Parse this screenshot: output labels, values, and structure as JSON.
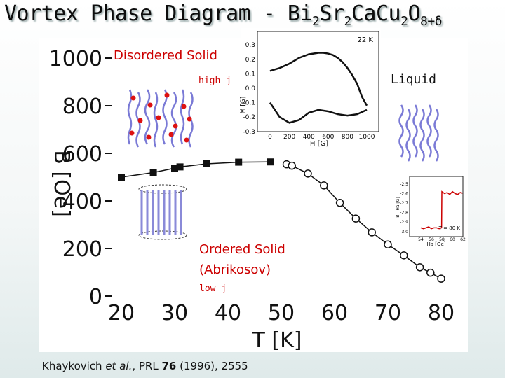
{
  "title": {
    "prefix": "Vortex Phase Diagram - Bi",
    "s1": "2",
    "t1": "Sr",
    "s2": "2",
    "t2": "CaCu",
    "s3": "2",
    "t3": "O",
    "s4": "8+δ"
  },
  "chart_data": [
    {
      "type": "line",
      "xlabel": "T [K]",
      "ylabel": "B [Oe]",
      "xlim": [
        20,
        80
      ],
      "ylim": [
        0,
        1000
      ],
      "xticks": [
        "20",
        "30",
        "40",
        "50",
        "60",
        "70",
        "80"
      ],
      "yticks": [
        "0",
        "200",
        "400",
        "600",
        "800",
        "1000"
      ],
      "grid": false,
      "series": [
        {
          "marker": "filled-square",
          "x": [
            20,
            26,
            30,
            31,
            36,
            42,
            48
          ],
          "y": [
            500,
            519,
            538,
            543,
            556,
            563,
            564
          ]
        },
        {
          "marker": "open-circle",
          "x": [
            51,
            52,
            55,
            58,
            61,
            64,
            67,
            70,
            73,
            76,
            78,
            80
          ],
          "y": [
            554,
            548,
            515,
            465,
            392,
            326,
            268,
            217,
            171,
            121,
            98,
            73
          ]
        }
      ],
      "annotations": {
        "disordered": "Disordered Solid",
        "high_j": "high j",
        "ordered_line1": "Ordered Solid",
        "ordered_line2": "(Abrikosov)",
        "low_j": "low j",
        "liquid": "Liquid"
      }
    },
    {
      "type": "line",
      "title": "22 K",
      "xlabel": "H [G]",
      "ylabel": "M [G]",
      "xlim": [
        0,
        1000
      ],
      "ylim": [
        -0.3,
        0.3
      ],
      "xticks": [
        "0",
        "200",
        "400",
        "600",
        "800",
        "1000"
      ],
      "yticks": [
        "0.3",
        "0.2",
        "0.1",
        "0.0",
        "-0.1",
        "-0.2",
        "-0.3"
      ],
      "series": [
        {
          "name": "upper",
          "x": [
            0,
            100,
            200,
            300,
            400,
            500,
            550,
            600,
            650,
            700,
            750,
            800,
            850,
            900,
            950,
            1000
          ],
          "y": [
            0.12,
            0.14,
            0.17,
            0.21,
            0.235,
            0.245,
            0.245,
            0.24,
            0.23,
            0.21,
            0.18,
            0.14,
            0.09,
            0.03,
            -0.06,
            -0.12
          ]
        },
        {
          "name": "lower",
          "x": [
            0,
            100,
            200,
            300,
            400,
            500,
            600,
            700,
            800,
            900,
            1000
          ],
          "y": [
            -0.1,
            -0.2,
            -0.24,
            -0.22,
            -0.17,
            -0.15,
            -0.16,
            -0.18,
            -0.19,
            -0.18,
            -0.15
          ]
        }
      ]
    },
    {
      "type": "line",
      "title": "T = 80 K",
      "xlabel": "Ha [Oe]",
      "ylabel": "B - Ha [G]",
      "xlim": [
        54,
        62
      ],
      "ylim": [
        -3.0,
        -2.45
      ],
      "xticks": [
        "54",
        "55",
        "56",
        "57",
        "58",
        "59",
        "60",
        "61",
        "62"
      ],
      "yticks": [
        "-2.5",
        "-2.6",
        "-2.7",
        "-2.8",
        "-2.9",
        "-3.0"
      ],
      "series": [
        {
          "name": "step",
          "x": [
            54.0,
            54.5,
            55.0,
            55.5,
            56.0,
            56.5,
            57.0,
            57.5,
            57.95,
            58.0,
            58.5,
            59.0,
            59.5,
            60.0,
            60.5,
            61.0,
            61.5,
            61.9
          ],
          "y": [
            -2.96,
            -2.97,
            -2.96,
            -2.95,
            -2.97,
            -2.96,
            -2.96,
            -2.97,
            -2.96,
            -2.58,
            -2.6,
            -2.59,
            -2.61,
            -2.58,
            -2.6,
            -2.61,
            -2.59,
            -2.6
          ]
        }
      ]
    }
  ],
  "citation": {
    "authors": "Khaykovich",
    "etal": "et al.",
    "journal": ", PRL ",
    "volume": "76",
    "rest": " (1996), 2555"
  }
}
